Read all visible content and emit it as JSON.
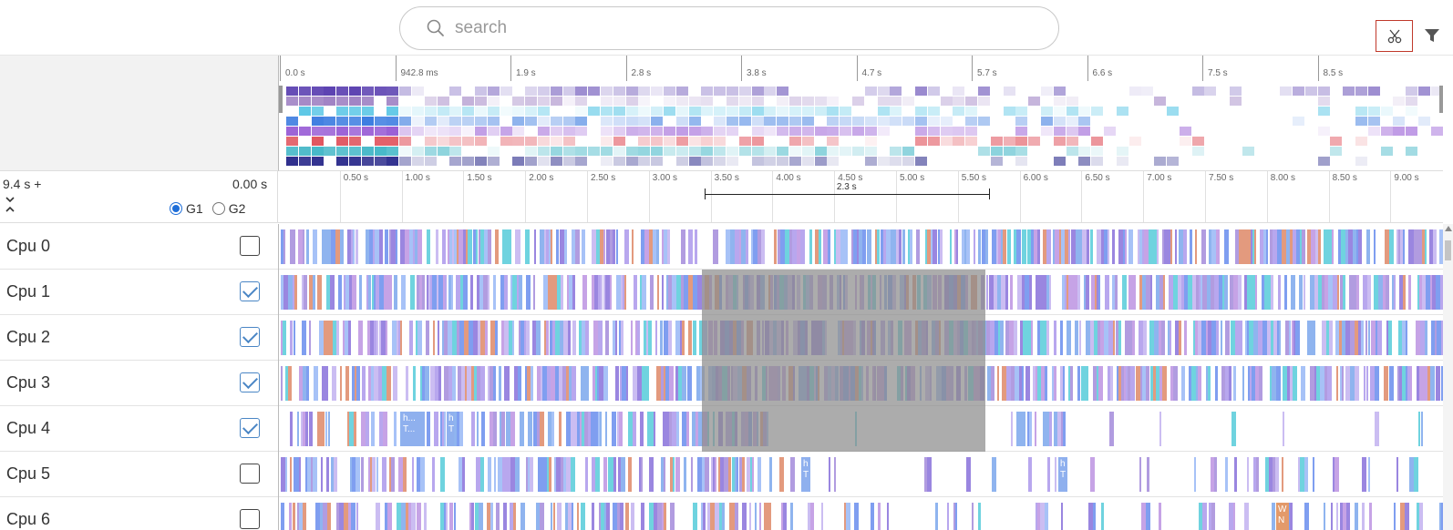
{
  "search": {
    "placeholder": "search",
    "value": ""
  },
  "toolbar": {
    "cut_icon": "scissors-icon",
    "filter_icon": "filter-icon",
    "cut_border_color": "#c0392b"
  },
  "overview": {
    "ticks": [
      "0.0 s",
      "942.8 ms",
      "1.9 s",
      "2.8 s",
      "3.8 s",
      "4.7 s",
      "5.7 s",
      "6.6 s",
      "7.5 s",
      "8.5 s"
    ]
  },
  "timeline": {
    "offset_label": "9.4 s +",
    "total_label": "0.00 s",
    "groups": [
      {
        "label": "G1",
        "selected": true
      },
      {
        "label": "G2",
        "selected": false
      }
    ],
    "ticks": [
      "0.50 s",
      "1.00 s",
      "1.50 s",
      "2.00 s",
      "2.50 s",
      "3.00 s",
      "3.50 s",
      "4.00 s",
      "4.50 s",
      "5.00 s",
      "5.50 s",
      "6.00 s",
      "6.50 s",
      "7.00 s",
      "7.50 s",
      "8.00 s",
      "8.50 s",
      "9.00 s"
    ],
    "range_label": "2.3 s",
    "range_start_s": 3.45,
    "range_end_s": 5.75,
    "total_s": 9.4
  },
  "cpus": [
    {
      "label": "Cpu 0",
      "checked": false
    },
    {
      "label": "Cpu 1",
      "checked": true
    },
    {
      "label": "Cpu 2",
      "checked": true
    },
    {
      "label": "Cpu 3",
      "checked": true
    },
    {
      "label": "Cpu 4",
      "checked": true
    },
    {
      "label": "Cpu 5",
      "checked": false
    },
    {
      "label": "Cpu 6",
      "checked": false
    }
  ],
  "slice_labels": {
    "cpu4_a": "h... T...",
    "cpu4_b": "h T",
    "cpu5_a": "h T",
    "cpu5_b": "h T",
    "cpu6_a": "W N"
  },
  "palette": [
    "#9a86e0",
    "#b8a7ee",
    "#7f9ef0",
    "#a7c2f7",
    "#6fd3df",
    "#c6a3e6",
    "#e39a7e",
    "#b19ce0",
    "#8fb4ef",
    "#cbbdf2"
  ]
}
